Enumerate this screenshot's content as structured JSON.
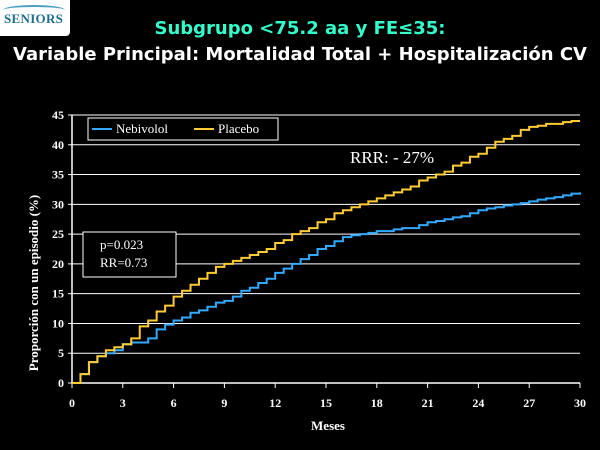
{
  "logo": {
    "text": "SENIORS"
  },
  "title_line1": "Subgrupo <75.2 aa y FE≤35:",
  "title_line2": "Variable Principal: Mortalidad Total + Hospitalización CV",
  "colors": {
    "nebivolol": "#33aaff",
    "placebo": "#ffcc33",
    "grid": "#ffffff",
    "text": "#ffffff"
  },
  "chart_data": {
    "type": "line",
    "xlabel": "Meses",
    "ylabel": "Proporción con un episodio (%)",
    "xlim": [
      0,
      30
    ],
    "ylim": [
      0,
      45
    ],
    "xticks": [
      0,
      3,
      6,
      9,
      12,
      15,
      18,
      21,
      24,
      27,
      30
    ],
    "yticks": [
      0,
      5,
      10,
      15,
      20,
      25,
      30,
      35,
      40,
      45
    ],
    "grid": "horizontal",
    "legend": "top-left",
    "series": [
      {
        "name": "Nebivolol",
        "color": "#33aaff",
        "x": [
          0,
          0.5,
          1,
          1.5,
          2,
          2.5,
          3,
          3.5,
          4,
          4.5,
          5,
          5.5,
          6,
          6.5,
          7,
          7.5,
          8,
          8.5,
          9,
          9.5,
          10,
          10.5,
          11,
          11.5,
          12,
          12.5,
          13,
          13.5,
          14,
          14.5,
          15,
          15.5,
          16,
          16.5,
          17,
          17.5,
          18,
          18.5,
          19,
          19.5,
          20,
          20.5,
          21,
          21.5,
          22,
          22.5,
          23,
          23.5,
          24,
          24.5,
          25,
          25.5,
          26,
          26.5,
          27,
          27.5,
          28,
          28.5,
          29,
          29.5,
          30
        ],
        "values": [
          0,
          1.5,
          3.5,
          4.5,
          5,
          5.5,
          6.5,
          6.8,
          6.8,
          7.5,
          9,
          9.8,
          10.5,
          11,
          11.8,
          12.2,
          12.8,
          13.5,
          13.8,
          14.5,
          15.5,
          16,
          16.8,
          17.5,
          18.5,
          19.2,
          20,
          20.8,
          21.5,
          22.5,
          23,
          23.8,
          24.5,
          24.8,
          25,
          25.2,
          25.5,
          25.5,
          25.8,
          26,
          26,
          26.5,
          27,
          27.2,
          27.5,
          27.8,
          28,
          28.5,
          29,
          29.3,
          29.5,
          29.8,
          30,
          30.2,
          30.5,
          30.8,
          31,
          31.2,
          31.5,
          31.8,
          32
        ]
      },
      {
        "name": "Placebo",
        "color": "#ffcc33",
        "x": [
          0,
          0.5,
          1,
          1.5,
          2,
          2.5,
          3,
          3.5,
          4,
          4.5,
          5,
          5.5,
          6,
          6.5,
          7,
          7.5,
          8,
          8.5,
          9,
          9.5,
          10,
          10.5,
          11,
          11.5,
          12,
          12.5,
          13,
          13.5,
          14,
          14.5,
          15,
          15.5,
          16,
          16.5,
          17,
          17.5,
          18,
          18.5,
          19,
          19.5,
          20,
          20.5,
          21,
          21.5,
          22,
          22.5,
          23,
          23.5,
          24,
          24.5,
          25,
          25.5,
          26,
          26.5,
          27,
          27.5,
          28,
          28.5,
          29,
          29.5,
          30
        ],
        "values": [
          0,
          1.5,
          3.5,
          4.5,
          5.5,
          6,
          6.5,
          7.5,
          9.5,
          10.5,
          12,
          13,
          14.5,
          15.5,
          16.5,
          17.5,
          18.5,
          19.5,
          20,
          20.5,
          21,
          21.5,
          22,
          22.5,
          23.5,
          24,
          25,
          25.5,
          26,
          27,
          27.5,
          28.5,
          29,
          29.5,
          30,
          30.5,
          31,
          31.5,
          32,
          32.5,
          33,
          34,
          34.5,
          35,
          35.5,
          36.5,
          37,
          38,
          38.5,
          39.5,
          40.5,
          41,
          41.5,
          42.5,
          43,
          43.2,
          43.5,
          43.5,
          43.8,
          44,
          44
        ]
      }
    ],
    "annotations": {
      "rrr": "RRR: - 27%",
      "p_value": "p=0.023",
      "rr": "RR=0.73"
    }
  }
}
